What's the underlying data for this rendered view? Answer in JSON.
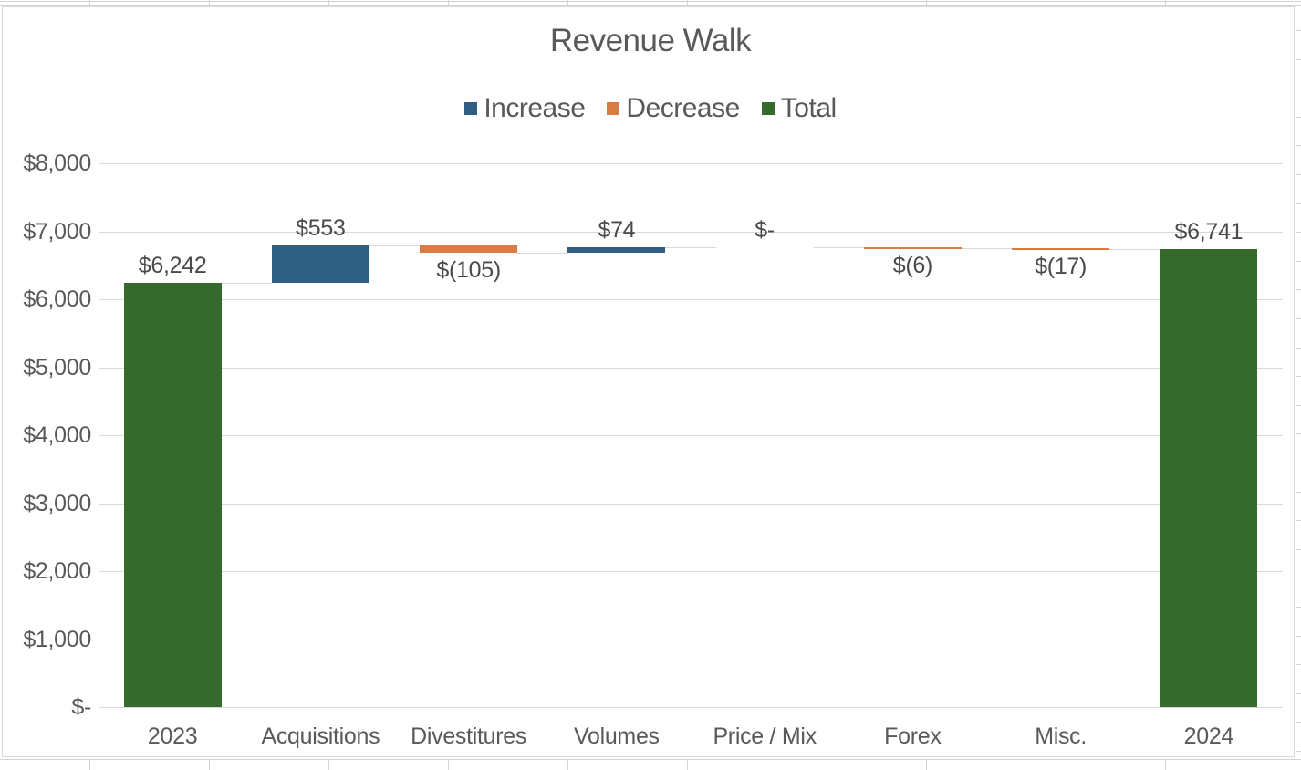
{
  "chart_data": {
    "type": "bar",
    "subtype": "waterfall",
    "title": "Revenue Walk",
    "categories": [
      "2023",
      "Acquisitions",
      "Divestitures",
      "Volumes",
      "Price / Mix",
      "Forex",
      "Misc.",
      "2024"
    ],
    "values": [
      6242,
      553,
      -105,
      74,
      0,
      -6,
      -17,
      6741
    ],
    "labels": [
      "$6,242",
      "$553",
      "$(105)",
      "$74",
      "$-",
      "$(6)",
      "$(17)",
      "$6,741"
    ],
    "kinds": [
      "total",
      "increase",
      "decrease",
      "increase",
      "zero",
      "decrease",
      "decrease",
      "total"
    ],
    "legend": [
      {
        "key": "increase",
        "label": "Increase",
        "color": "#2e5f80"
      },
      {
        "key": "decrease",
        "label": "Decrease",
        "color": "#d97b42"
      },
      {
        "key": "total",
        "label": "Total",
        "color": "#366a2c"
      }
    ],
    "legend_position": "top",
    "xlabel": "",
    "ylabel": "",
    "ylim": [
      0,
      8000
    ],
    "grid": true,
    "yticks": [
      {
        "value": 8000,
        "label": "$8,000"
      },
      {
        "value": 7000,
        "label": "$7,000"
      },
      {
        "value": 6000,
        "label": "$6,000"
      },
      {
        "value": 5000,
        "label": "$5,000"
      },
      {
        "value": 4000,
        "label": "$4,000"
      },
      {
        "value": 3000,
        "label": "$3,000"
      },
      {
        "value": 2000,
        "label": "$2,000"
      },
      {
        "value": 1000,
        "label": "$1,000"
      },
      {
        "value": 0,
        "label": "$-"
      }
    ],
    "colors": {
      "increase": "#2e5f80",
      "decrease": "#d97b42",
      "total": "#366a2c",
      "gridline": "#d9d9d9",
      "connector": "#d9d9d9",
      "chart_border": "#d9d9d9",
      "sheet_gridline": "#d4d4d4",
      "title_text": "#595959",
      "axis_text": "#595959",
      "data_label_text": "#4a4a4a",
      "background": "#ffffff"
    }
  }
}
